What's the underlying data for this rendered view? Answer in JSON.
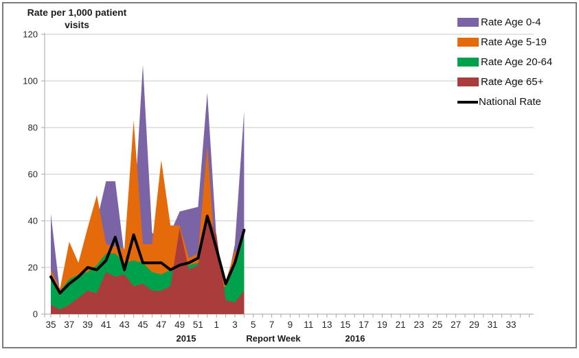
{
  "chart_data": {
    "type": "area",
    "title": "Rate per 1,000 patient visits",
    "title_lines": [
      "Rate per 1,000 patient",
      "visits"
    ],
    "grid": true,
    "legend_position": "top-right",
    "y_axis": {
      "min": 0,
      "max": 120,
      "step": 20,
      "tick_values": [
        0,
        20,
        40,
        60,
        80,
        100,
        120
      ]
    },
    "x_axis": {
      "title": "Report Week",
      "year_left": "2015",
      "year_right": "2016",
      "tick_labels": [
        "35",
        "37",
        "39",
        "41",
        "43",
        "45",
        "47",
        "49",
        "51",
        "1",
        "3",
        "5",
        "7",
        "9",
        "11",
        "13",
        "15",
        "17",
        "19",
        "21",
        "23",
        "25",
        "27",
        "29",
        "31",
        "33"
      ],
      "weeks_per_label": 2,
      "total_week_slots": 53
    },
    "weeks_with_data": [
      "35",
      "36",
      "37",
      "38",
      "39",
      "40",
      "41",
      "42",
      "43",
      "44",
      "45",
      "46",
      "47",
      "48",
      "49",
      "50",
      "51",
      "52",
      "1",
      "2",
      "3",
      "4"
    ],
    "series": [
      {
        "name": "Rate Age 0-4",
        "type": "area",
        "color": "#7B64A5",
        "values": [
          43,
          9,
          18,
          22,
          30,
          40,
          57,
          57,
          25,
          40,
          107,
          35,
          30,
          35,
          44,
          45,
          46,
          95,
          32,
          10,
          30,
          87
        ]
      },
      {
        "name": "Rate Age 5-19",
        "type": "area",
        "color": "#E56B0A",
        "values": [
          19,
          11,
          31,
          22,
          37,
          51,
          30,
          29,
          28,
          83,
          30,
          30,
          66,
          38,
          38,
          24,
          26,
          72,
          18,
          14,
          27,
          25
        ]
      },
      {
        "name": "Rate Age 20-64",
        "type": "area",
        "color": "#00A14D",
        "values": [
          17,
          10,
          15,
          17,
          18,
          21,
          26,
          26,
          22,
          23,
          22,
          18,
          17,
          19,
          20,
          21,
          22,
          28,
          10,
          12,
          21,
          36
        ]
      },
      {
        "name": "Rate Age 65+",
        "type": "area",
        "color": "#AA3C3C",
        "values": [
          4,
          2,
          4,
          7,
          10,
          9,
          18,
          16,
          17,
          12,
          13,
          10,
          10,
          12,
          37,
          19,
          21,
          43,
          34,
          6,
          5,
          10
        ]
      },
      {
        "name": "National Rate",
        "type": "line",
        "color": "#000000",
        "values": [
          16,
          9,
          13,
          16,
          20,
          19,
          23,
          33,
          19,
          34,
          22,
          22,
          22,
          19,
          21,
          22,
          24,
          42,
          28,
          13,
          22,
          36
        ]
      }
    ]
  }
}
